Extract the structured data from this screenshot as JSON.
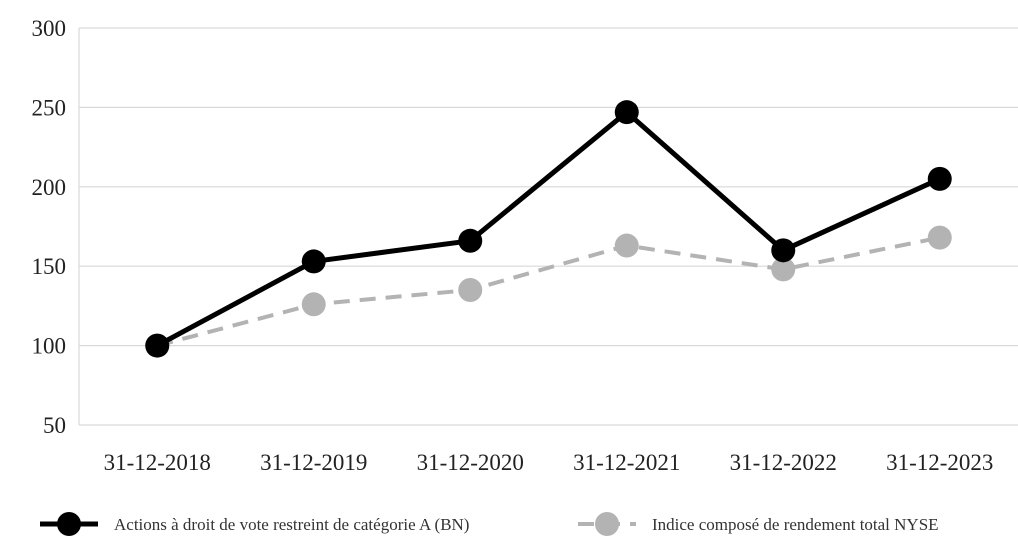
{
  "chart_data": {
    "type": "line",
    "categories": [
      "31-12-2018",
      "31-12-2019",
      "31-12-2020",
      "31-12-2021",
      "31-12-2022",
      "31-12-2023"
    ],
    "series": [
      {
        "name": "Actions à droit de vote restreint de catégorie A (BN)",
        "values": [
          100,
          153,
          166,
          247,
          160,
          205
        ],
        "color": "#000000",
        "style": "solid"
      },
      {
        "name": "Indice composé de rendement total NYSE",
        "values": [
          100,
          126,
          135,
          163,
          148,
          168
        ],
        "color": "#b3b3b3",
        "style": "dashed"
      }
    ],
    "ylim": [
      50,
      300
    ],
    "yticks": [
      "50",
      "100",
      "150",
      "200",
      "250",
      "300"
    ],
    "grid": true,
    "legend": "bottom"
  }
}
